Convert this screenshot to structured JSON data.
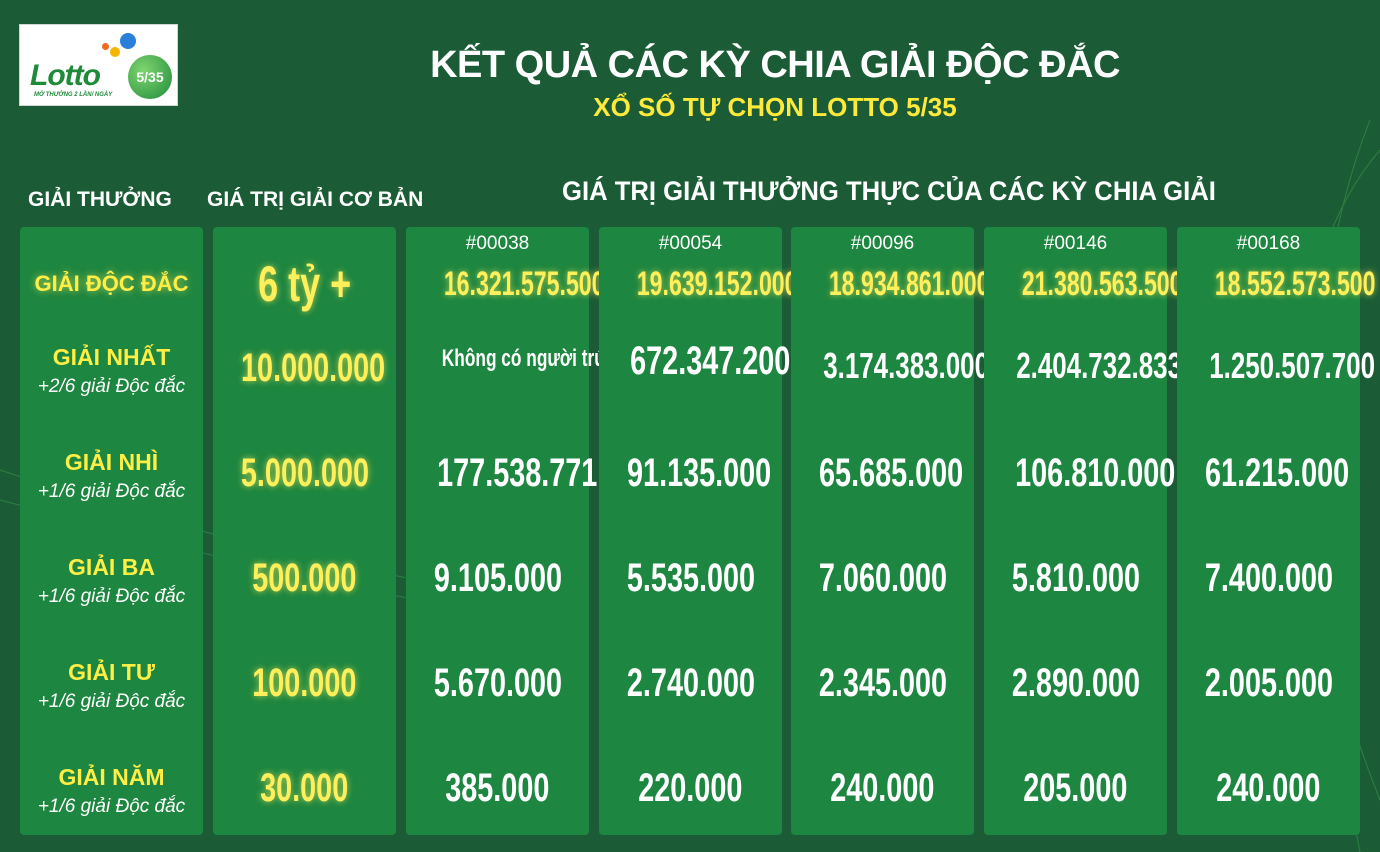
{
  "logo": {
    "text": "Lotto",
    "number": "5/35",
    "tagline": "MỞ THƯỞNG 2 LẦN/ NGÀY"
  },
  "header": {
    "title": "KẾT QUẢ CÁC KỲ CHIA GIẢI ĐỘC ĐẮC",
    "subtitle": "XỔ SỐ TỰ CHỌN LOTTO 5/35"
  },
  "columns": {
    "prize": "GIẢI THƯỞNG",
    "base": "GIÁ TRỊ GIẢI CƠ BẢN",
    "actual": "GIÁ TRỊ GIẢI THƯỞNG THỰC CỦA CÁC KỲ CHIA GIẢI"
  },
  "colors": {
    "background": "#1b5c37",
    "card": "#1d8640",
    "highlight": "#ffef5a"
  },
  "prizes": [
    {
      "name": "GIẢI ĐỘC ĐẮC",
      "note": "",
      "base": "6 tỷ +"
    },
    {
      "name": "GIẢI NHẤT",
      "note": "+2/6 giải Độc đắc",
      "base": "10.000.000"
    },
    {
      "name": "GIẢI NHÌ",
      "note": "+1/6 giải Độc đắc",
      "base": "5.000.000"
    },
    {
      "name": "GIẢI BA",
      "note": "+1/6 giải Độc đắc",
      "base": "500.000"
    },
    {
      "name": "GIẢI TƯ",
      "note": "+1/6 giải Độc đắc",
      "base": "100.000"
    },
    {
      "name": "GIẢI NĂM",
      "note": "+1/6 giải Độc đắc",
      "base": "30.000"
    }
  ],
  "draws": [
    {
      "id": "#00038",
      "values": [
        "16.321.575.500",
        "Không có người trúng",
        "177.538.771",
        "9.105.000",
        "5.670.000",
        "385.000"
      ]
    },
    {
      "id": "#00054",
      "values": [
        "19.639.152.000",
        "672.347.200",
        "91.135.000",
        "5.535.000",
        "2.740.000",
        "220.000"
      ]
    },
    {
      "id": "#00096",
      "values": [
        "18.934.861.000",
        "3.174.383.000",
        "65.685.000",
        "7.060.000",
        "2.345.000",
        "240.000"
      ]
    },
    {
      "id": "#00146",
      "values": [
        "21.380.563.500",
        "2.404.732.833",
        "106.810.000",
        "5.810.000",
        "2.890.000",
        "205.000"
      ]
    },
    {
      "id": "#00168",
      "values": [
        "18.552.573.500",
        "1.250.507.700",
        "61.215.000",
        "7.400.000",
        "2.005.000",
        "240.000"
      ]
    }
  ]
}
